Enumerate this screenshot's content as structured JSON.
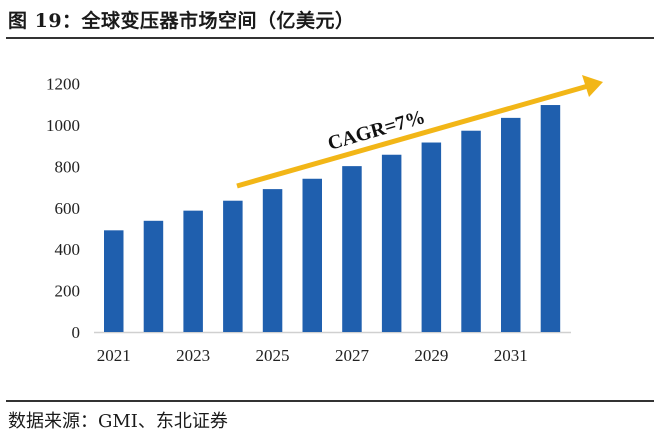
{
  "header": {
    "title": "图 19：全球变压器市场空间（亿美元）"
  },
  "footer": {
    "source": "数据来源：GMI、东北证券"
  },
  "chart_data": {
    "type": "bar",
    "title": "",
    "xlabel": "",
    "ylabel": "",
    "categories": [
      "2021",
      "2022",
      "2023",
      "2024",
      "2025",
      "2026",
      "2027",
      "2028",
      "2029",
      "2030",
      "2031",
      "2032"
    ],
    "x_tick_labels": [
      "2021",
      "2023",
      "2025",
      "2027",
      "2029",
      "2031"
    ],
    "values": [
      491,
      537,
      586,
      634,
      690,
      740,
      801,
      856,
      915,
      972,
      1034,
      1096
    ],
    "ylim": [
      0,
      1200
    ],
    "y_ticks": [
      "0",
      "200",
      "400",
      "600",
      "800",
      "1000",
      "1200"
    ],
    "grid": false,
    "legend": "none",
    "annotation": "CAGR=7%",
    "colors": {
      "bar": "#1f5fae",
      "arrow": "#f2b617",
      "axis": "#d0d0d0"
    }
  }
}
